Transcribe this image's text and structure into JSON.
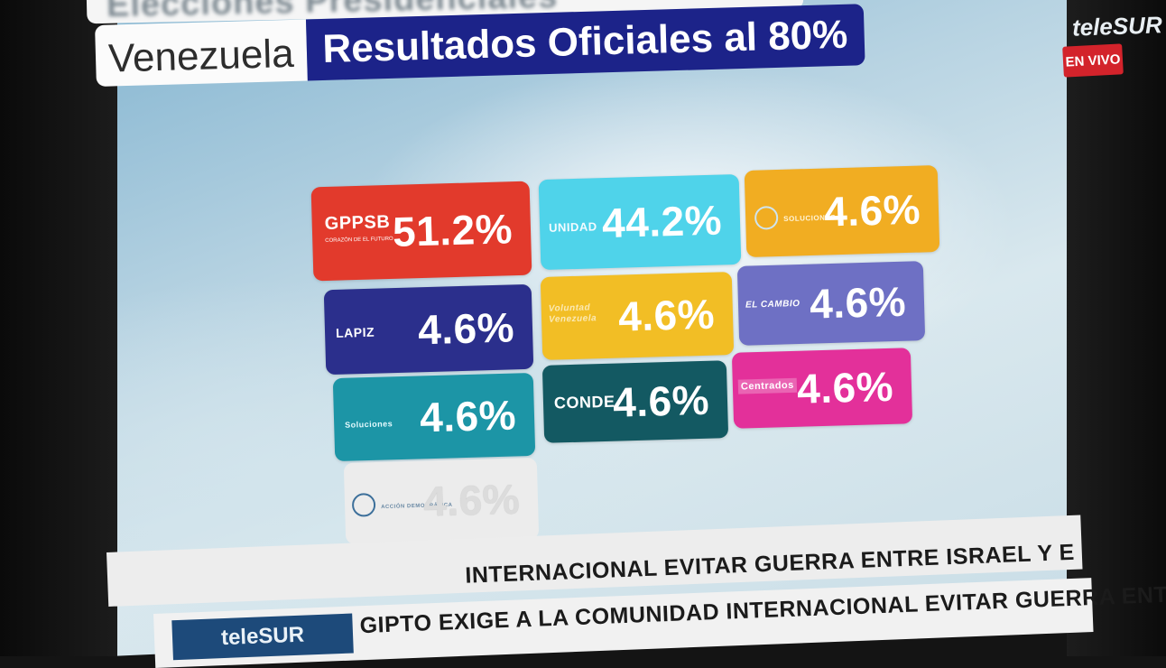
{
  "header": {
    "top_title": "Elecciones Presidenciales",
    "country": "Venezuela",
    "results_label": "Resultados Oficiales al 80%"
  },
  "channel": {
    "logo": "teleSUR",
    "live_badge": "EN VIVO"
  },
  "results": [
    {
      "party": "GPPSB",
      "logo_sub": "CORAZÓN DE EL FUTURO",
      "percent": "51.2%",
      "color": "#e23a2c"
    },
    {
      "party": "UNIDAD",
      "percent": "44.2%",
      "color": "#4fd3ea"
    },
    {
      "party": "SOLUCIONES",
      "percent": "4.6%",
      "color": "#f1ad22"
    },
    {
      "party": "LAPIZ",
      "percent": "4.6%",
      "color": "#2b2f8c"
    },
    {
      "party": "Voluntad Venezuela",
      "percent": "4.6%",
      "color": "#f2be25"
    },
    {
      "party": "EL CAMBIO",
      "percent": "4.6%",
      "color": "#6e70c4"
    },
    {
      "party": "Soluciones",
      "percent": "4.6%",
      "color": "#1c95a6"
    },
    {
      "party": "CONDE",
      "percent": "4.6%",
      "color": "#135962"
    },
    {
      "party": "Centrados",
      "percent": "4.6%",
      "color": "#e3309a"
    },
    {
      "party": "ACCIÓN DEMOCRÁTICA",
      "percent": "4.6%",
      "color": "#ececec"
    }
  ],
  "ticker": {
    "upper": "INTERNACIONAL EVITAR GUERRA ENTRE ISRAEL Y E",
    "lower_brand": "teleSUR",
    "lower": "GIPTO EXIGE A LA COMUNIDAD INTERNACIONAL EVITAR GUERRA ENTRE ISRAEL Y"
  }
}
